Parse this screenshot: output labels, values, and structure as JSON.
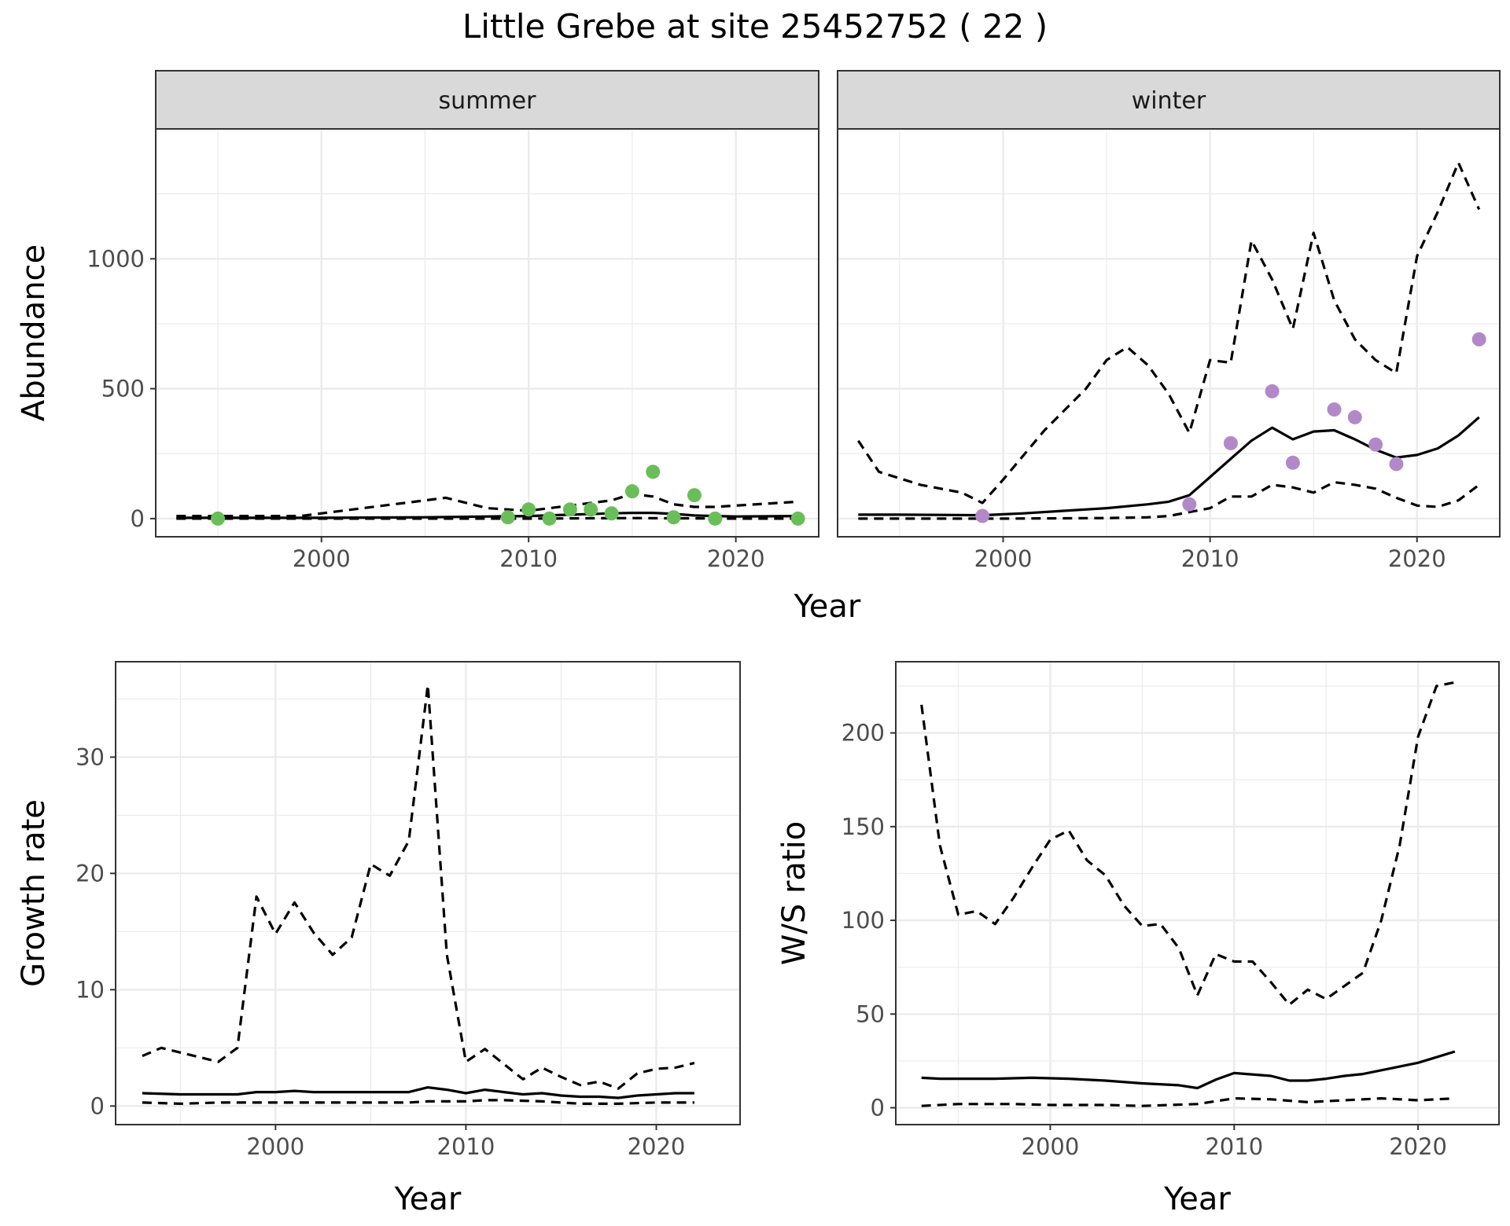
{
  "title": "Little Grebe at site 25452752 ( 22 )",
  "chart_data": [
    {
      "id": "abundance",
      "type": "line",
      "ylabel": "Abundance",
      "xlabel": "Year",
      "xlim": [
        1992,
        2024
      ],
      "ylim": [
        -70,
        1500
      ],
      "x_ticks": [
        2000,
        2010,
        2020
      ],
      "y_ticks": [
        0,
        500,
        1000
      ],
      "grid": true,
      "panels": [
        {
          "strip": "summer",
          "point_color": "#6ABE5A",
          "series": [
            {
              "name": "estimate",
              "style": "solid",
              "x": [
                1993,
                1995,
                2000,
                2005,
                2008,
                2010,
                2012,
                2014,
                2015,
                2016,
                2017,
                2018,
                2019,
                2020,
                2023
              ],
              "y": [
                3,
                3,
                3,
                5,
                8,
                10,
                15,
                20,
                22,
                22,
                18,
                12,
                10,
                8,
                10
              ]
            },
            {
              "name": "upper",
              "style": "dashed",
              "x": [
                1993,
                1995,
                1999,
                2001,
                2004,
                2006,
                2008,
                2010,
                2012,
                2014,
                2015,
                2016,
                2017,
                2018,
                2019,
                2020,
                2022,
                2023
              ],
              "y": [
                10,
                10,
                10,
                30,
                60,
                80,
                40,
                30,
                50,
                70,
                95,
                85,
                55,
                45,
                45,
                50,
                60,
                65
              ]
            },
            {
              "name": "lower",
              "style": "dashed",
              "x": [
                1993,
                2000,
                2010,
                2015,
                2020,
                2023
              ],
              "y": [
                0,
                0,
                0,
                2,
                0,
                0
              ]
            }
          ],
          "points": {
            "x": [
              1995,
              2009,
              2010,
              2011,
              2012,
              2013,
              2014,
              2015,
              2016,
              2017,
              2018,
              2019,
              2023
            ],
            "y": [
              0,
              5,
              35,
              0,
              35,
              35,
              20,
              105,
              180,
              5,
              90,
              0,
              0
            ]
          }
        },
        {
          "strip": "winter",
          "point_color": "#B388C8",
          "series": [
            {
              "name": "estimate",
              "style": "solid",
              "x": [
                1993,
                1995,
                1997,
                1999,
                2001,
                2003,
                2005,
                2007,
                2008,
                2009,
                2010,
                2011,
                2012,
                2013,
                2014,
                2015,
                2016,
                2017,
                2018,
                2019,
                2020,
                2021,
                2022,
                2023
              ],
              "y": [
                15,
                15,
                14,
                13,
                20,
                30,
                40,
                55,
                65,
                90,
                160,
                230,
                300,
                350,
                305,
                335,
                340,
                305,
                265,
                235,
                245,
                270,
                320,
                390
              ]
            },
            {
              "name": "upper",
              "style": "dashed",
              "x": [
                1993,
                1994,
                1996,
                1998,
                1999,
                2000,
                2002,
                2004,
                2005,
                2006,
                2007,
                2008,
                2009,
                2010,
                2011,
                2012,
                2013,
                2014,
                2015,
                2016,
                2017,
                2018,
                2019,
                2020,
                2021,
                2022,
                2023
              ],
              "y": [
                300,
                180,
                130,
                100,
                60,
                150,
                340,
                500,
                610,
                660,
                590,
                480,
                330,
                610,
                600,
                1070,
                920,
                730,
                1100,
                840,
                690,
                610,
                560,
                1010,
                1180,
                1370,
                1190
              ]
            },
            {
              "name": "lower",
              "style": "dashed",
              "x": [
                1993,
                1995,
                2000,
                2005,
                2007,
                2008,
                2009,
                2010,
                2011,
                2012,
                2013,
                2014,
                2015,
                2016,
                2017,
                2018,
                2019,
                2020,
                2021,
                2022,
                2023
              ],
              "y": [
                0,
                0,
                0,
                2,
                5,
                10,
                25,
                40,
                85,
                85,
                130,
                120,
                100,
                140,
                130,
                115,
                80,
                50,
                45,
                70,
                130
              ]
            }
          ],
          "points": {
            "x": [
              1999,
              2009,
              2011,
              2013,
              2014,
              2016,
              2017,
              2018,
              2019,
              2023
            ],
            "y": [
              10,
              55,
              290,
              490,
              215,
              420,
              390,
              285,
              210,
              690
            ]
          }
        }
      ]
    },
    {
      "id": "growth",
      "type": "line",
      "ylabel": "Growth rate",
      "xlabel": "Year",
      "xlim": [
        1991.6,
        2024.4
      ],
      "ylim": [
        -1.6,
        38.2
      ],
      "x_ticks": [
        2000,
        2010,
        2020
      ],
      "y_ticks": [
        0,
        10,
        20,
        30
      ],
      "grid": true,
      "series": [
        {
          "name": "estimate",
          "style": "solid",
          "x": [
            1993,
            1995,
            1997,
            1998,
            1999,
            2000,
            2001,
            2002,
            2003,
            2004,
            2005,
            2006,
            2007,
            2008,
            2009,
            2010,
            2011,
            2012,
            2013,
            2014,
            2015,
            2016,
            2017,
            2018,
            2019,
            2020,
            2021,
            2022
          ],
          "y": [
            1.1,
            1.0,
            1.0,
            1.0,
            1.2,
            1.2,
            1.3,
            1.2,
            1.2,
            1.2,
            1.2,
            1.2,
            1.2,
            1.6,
            1.4,
            1.1,
            1.4,
            1.2,
            1.0,
            1.1,
            0.9,
            0.8,
            0.8,
            0.7,
            0.9,
            1.0,
            1.1,
            1.1
          ]
        },
        {
          "name": "upper",
          "style": "dashed",
          "x": [
            1993,
            1994,
            1996,
            1997,
            1998,
            1999,
            2000,
            2001,
            2002,
            2003,
            2004,
            2005,
            2006,
            2007,
            2008,
            2009,
            2010,
            2011,
            2012,
            2013,
            2014,
            2015,
            2016,
            2017,
            2018,
            2019,
            2020,
            2021,
            2022
          ],
          "y": [
            4.3,
            5.0,
            4.2,
            3.8,
            5.0,
            18.0,
            14.8,
            17.5,
            14.9,
            13.0,
            14.5,
            20.8,
            19.8,
            22.8,
            36.2,
            13.0,
            3.8,
            4.9,
            3.6,
            2.3,
            3.3,
            2.5,
            1.8,
            2.1,
            1.5,
            2.8,
            3.2,
            3.3,
            3.7
          ]
        },
        {
          "name": "lower",
          "style": "dashed",
          "x": [
            1993,
            1995,
            1997,
            2000,
            2003,
            2005,
            2007,
            2008,
            2010,
            2011,
            2012,
            2014,
            2016,
            2018,
            2020,
            2022
          ],
          "y": [
            0.3,
            0.2,
            0.3,
            0.3,
            0.3,
            0.3,
            0.3,
            0.4,
            0.4,
            0.5,
            0.5,
            0.4,
            0.2,
            0.2,
            0.3,
            0.3
          ]
        }
      ]
    },
    {
      "id": "ratio",
      "type": "line",
      "ylabel": "W/S ratio",
      "xlabel": "Year",
      "xlim": [
        1991.6,
        2024.4
      ],
      "ylim": [
        -9,
        238
      ],
      "x_ticks": [
        2000,
        2010,
        2020
      ],
      "y_ticks": [
        0,
        50,
        100,
        150,
        200
      ],
      "grid": true,
      "series": [
        {
          "name": "estimate",
          "style": "solid",
          "x": [
            1993,
            1994,
            1997,
            1999,
            2001,
            2003,
            2005,
            2007,
            2008,
            2009,
            2010,
            2012,
            2013,
            2014,
            2015,
            2016,
            2017,
            2019,
            2020,
            2021,
            2022
          ],
          "y": [
            16,
            15.5,
            15.5,
            16,
            15.5,
            14.5,
            13,
            12,
            10.5,
            15,
            18.5,
            17,
            14.5,
            14.5,
            15.5,
            17,
            18,
            22,
            24,
            27,
            30
          ]
        },
        {
          "name": "upper",
          "style": "dashed",
          "x": [
            1993,
            1994,
            1995,
            1996,
            1997,
            1998,
            1999,
            2000,
            2001,
            2002,
            2003,
            2004,
            2005,
            2006,
            2007,
            2008,
            2009,
            2010,
            2011,
            2012,
            2013,
            2014,
            2015,
            2016,
            2017,
            2018,
            2019,
            2020,
            2021,
            2022
          ],
          "y": [
            215,
            140,
            103,
            105,
            98,
            112,
            128,
            143,
            148,
            132,
            124,
            108,
            97,
            98,
            85,
            60,
            82,
            78,
            78,
            67,
            55,
            63,
            58,
            65,
            72,
            100,
            140,
            198,
            225,
            227
          ]
        },
        {
          "name": "lower",
          "style": "dashed",
          "x": [
            1993,
            1995,
            1998,
            2000,
            2003,
            2005,
            2008,
            2010,
            2012,
            2014,
            2016,
            2018,
            2020,
            2022
          ],
          "y": [
            1,
            2,
            2,
            1.5,
            1.5,
            1,
            2,
            5,
            4.5,
            3,
            4,
            5,
            4,
            5
          ]
        }
      ]
    }
  ]
}
